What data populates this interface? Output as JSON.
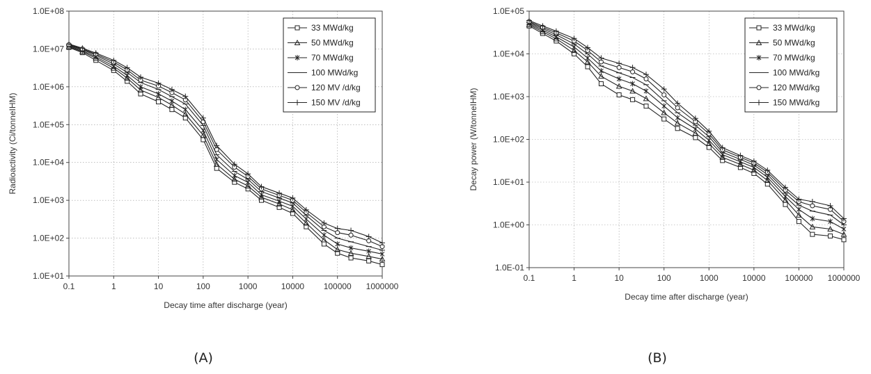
{
  "panel_labels": [
    "(A)",
    "(B)"
  ],
  "chart_data": [
    {
      "type": "line",
      "xlabel": "Decay time after discharge (year)",
      "ylabel": "Radioactivity (Ci/tonneIHM)",
      "xscale": "log",
      "yscale": "log",
      "xlim": [
        0.1,
        1000000
      ],
      "ylim": [
        10,
        100000000
      ],
      "x_ticks": [
        "0.1",
        "1",
        "10",
        "100",
        "1000",
        "10000",
        "100000",
        "1000000"
      ],
      "y_ticks": [
        "1.0E+01",
        "1.0E+02",
        "1.0E+03",
        "1.0E+04",
        "1.0E+05",
        "1.0E+06",
        "1.0E+07",
        "1.0E+08"
      ],
      "grid": "dotted",
      "legend_position": "top-right",
      "x": [
        0.1,
        0.2,
        0.4,
        1,
        2,
        4,
        10,
        20,
        40,
        100,
        200,
        500,
        1000,
        2000,
        5000,
        10000,
        20000,
        50000,
        100000,
        200000,
        500000,
        1000000
      ],
      "series": [
        {
          "name": "33 MWd/kg",
          "marker": "square",
          "values": [
            11000000,
            8000000,
            5000000,
            2700000,
            1400000,
            650000,
            400000,
            250000,
            150000,
            40000,
            7000,
            3000,
            2000,
            1000,
            650,
            450,
            200,
            70,
            40,
            30,
            25,
            20
          ]
        },
        {
          "name": "50 MWd/kg",
          "marker": "triangle",
          "values": [
            11500000,
            8500000,
            5700000,
            3100000,
            1700000,
            820000,
            520000,
            330000,
            190000,
            52000,
            9000,
            3600,
            2400,
            1200,
            800,
            560,
            250,
            90,
            50,
            40,
            33,
            28
          ]
        },
        {
          "name": "70 MWd/kg",
          "marker": "star",
          "values": [
            12000000,
            9000000,
            6200000,
            3500000,
            2000000,
            1000000,
            650000,
            420000,
            250000,
            70000,
            12000,
            4500,
            3000,
            1400,
            950,
            700,
            320,
            120,
            70,
            55,
            45,
            38
          ]
        },
        {
          "name": "100 MWd/kg",
          "marker": "dash",
          "values": [
            12500000,
            9600000,
            6800000,
            4000000,
            2400000,
            1300000,
            850000,
            550000,
            350000,
            95000,
            16000,
            5800,
            3600,
            1700,
            1150,
            850,
            400,
            160,
            100,
            80,
            60,
            48
          ]
        },
        {
          "name": "120 MV /d/kg",
          "marker": "circle",
          "values": [
            13000000,
            10000000,
            7300000,
            4500000,
            2800000,
            1500000,
            1050000,
            700000,
            450000,
            120000,
            22000,
            7500,
            4300,
            2000,
            1350,
            1000,
            480,
            200,
            140,
            120,
            85,
            60
          ]
        },
        {
          "name": "150 MV /d/kg",
          "marker": "plus",
          "values": [
            13500000,
            10500000,
            7800000,
            5000000,
            3200000,
            1800000,
            1250000,
            850000,
            560000,
            150000,
            28000,
            9000,
            5000,
            2300,
            1550,
            1150,
            560,
            250,
            180,
            160,
            110,
            75
          ]
        }
      ]
    },
    {
      "type": "line",
      "xlabel": "Decay time after discharge (year)",
      "ylabel": "Decay power (W/tonneIHM)",
      "xscale": "log",
      "yscale": "log",
      "xlim": [
        0.1,
        1000000
      ],
      "ylim": [
        0.1,
        100000
      ],
      "x_ticks": [
        "0.1",
        "1",
        "10",
        "100",
        "1000",
        "10000",
        "100000",
        "1000000"
      ],
      "y_ticks": [
        "1.0E-01",
        "1.0E+00",
        "1.0E+01",
        "1.0E+02",
        "1.0E+03",
        "1.0E+04",
        "1.0E+05"
      ],
      "grid": "dotted",
      "legend_position": "top-right",
      "x": [
        0.1,
        0.2,
        0.4,
        1,
        2,
        4,
        10,
        20,
        40,
        100,
        200,
        500,
        1000,
        2000,
        5000,
        10000,
        20000,
        50000,
        100000,
        200000,
        500000,
        1000000
      ],
      "series": [
        {
          "name": "33 MWd/kg",
          "marker": "square",
          "values": [
            45000,
            30000,
            20000,
            10000,
            5000,
            2000,
            1100,
            850,
            600,
            300,
            180,
            110,
            65,
            32,
            22,
            16,
            9,
            3,
            1.2,
            0.6,
            0.55,
            0.45
          ]
        },
        {
          "name": "50 MWd/kg",
          "marker": "triangle",
          "values": [
            48000,
            33000,
            22500,
            12000,
            6500,
            3000,
            1750,
            1350,
            900,
            420,
            240,
            140,
            80,
            38,
            26,
            19,
            11,
            3.8,
            1.7,
            0.9,
            0.8,
            0.6
          ]
        },
        {
          "name": "70 MWd/kg",
          "marker": "star",
          "values": [
            51000,
            36000,
            25000,
            14500,
            8000,
            4000,
            2600,
            2000,
            1350,
            600,
            320,
            175,
            95,
            44,
            30,
            22,
            13,
            4.6,
            2.3,
            1.4,
            1.2,
            0.8
          ]
        },
        {
          "name": "100 MWd/kg",
          "marker": "dash",
          "values": [
            54000,
            39000,
            28000,
            17000,
            10000,
            5200,
            3600,
            2800,
            1900,
            800,
            420,
            215,
            115,
            50,
            34,
            25,
            15,
            5.5,
            2.9,
            2.1,
            1.7,
            1.0
          ]
        },
        {
          "name": "120 MWd/kg",
          "marker": "circle",
          "values": [
            57000,
            42000,
            31000,
            20000,
            12000,
            6500,
            4800,
            3800,
            2600,
            1100,
            550,
            260,
            135,
            57,
            38,
            28,
            17,
            6.5,
            3.5,
            2.8,
            2.3,
            1.2
          ]
        },
        {
          "name": "150 MWd/kg",
          "marker": "plus",
          "values": [
            60000,
            45000,
            34000,
            23000,
            14000,
            8000,
            6000,
            4800,
            3300,
            1500,
            700,
            310,
            155,
            64,
            42,
            31,
            19,
            7.5,
            4.0,
            3.5,
            2.8,
            1.4
          ]
        }
      ]
    }
  ]
}
